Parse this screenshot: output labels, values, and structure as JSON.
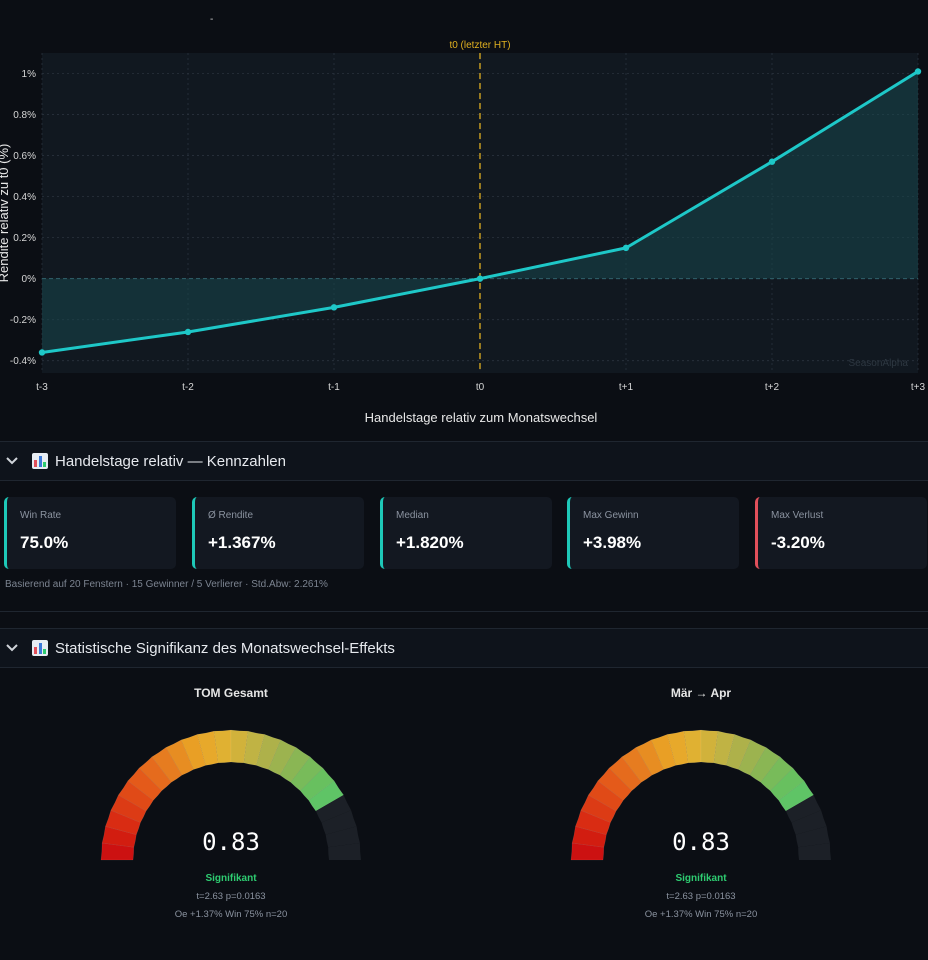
{
  "top_mark": "-",
  "chart_data": {
    "type": "line",
    "categories": [
      "t-3",
      "t-2",
      "t-1",
      "t0",
      "t+1",
      "t+2",
      "t+3"
    ],
    "series": [
      {
        "values": [
          -0.36,
          -0.26,
          -0.14,
          0.0,
          0.15,
          0.57,
          1.01
        ]
      }
    ],
    "ylim": [
      -0.46,
      1.1
    ],
    "yticks": [
      -0.4,
      -0.2,
      0,
      0.2,
      0.4,
      0.6,
      0.8,
      1
    ],
    "ytick_labels": [
      "-0.4%",
      "-0.2%",
      "0%",
      "0.2%",
      "0.4%",
      "0.6%",
      "0.8%",
      "1%"
    ],
    "xlabel": "Handelstage relativ zum Monatswechsel",
    "ylabel": "Rendite relativ zu t0 (%)",
    "marker_label": "t0 (letzter HT)",
    "marker_category": "t0",
    "watermark": "SeasonAlpha",
    "grid": true,
    "line_color": "#1ec8c8",
    "marker_color": "#e0b020"
  },
  "sections": {
    "kennzahlen_title": "Handelstage relativ — Kennzahlen",
    "signifikanz_title": "Statistische Signifikanz des Monatswechsel-Effekts"
  },
  "metrics": [
    {
      "label": "Win Rate",
      "value": "75.0%"
    },
    {
      "label": "Ø Rendite",
      "value": "+1.367%"
    },
    {
      "label": "Median",
      "value": "+1.820%"
    },
    {
      "label": "Max Gewinn",
      "value": "+3.98%"
    },
    {
      "label": "Max Verlust",
      "value": "-3.20%"
    }
  ],
  "basis_text": "Basierend auf 20 Fenstern · 15 Gewinner / 5 Verlierer · Std.Abw: 2.261%",
  "gauges": [
    {
      "title": "TOM Gesamt",
      "value": "0.83",
      "level": 0.83,
      "status": "Signifikant",
      "stat": "t=2.63 p=0.0163",
      "summary": "Oe +1.37% Win 75% n=20"
    },
    {
      "title": "Mär → Apr",
      "value": "0.83",
      "level": 0.83,
      "status": "Signifikant",
      "stat": "t=2.63 p=0.0163",
      "summary": "Oe +1.37% Win 75% n=20"
    }
  ],
  "colors": {
    "positive": "#1ec8b8",
    "negative": "#e2505b",
    "status_ok": "#2ecc71"
  }
}
